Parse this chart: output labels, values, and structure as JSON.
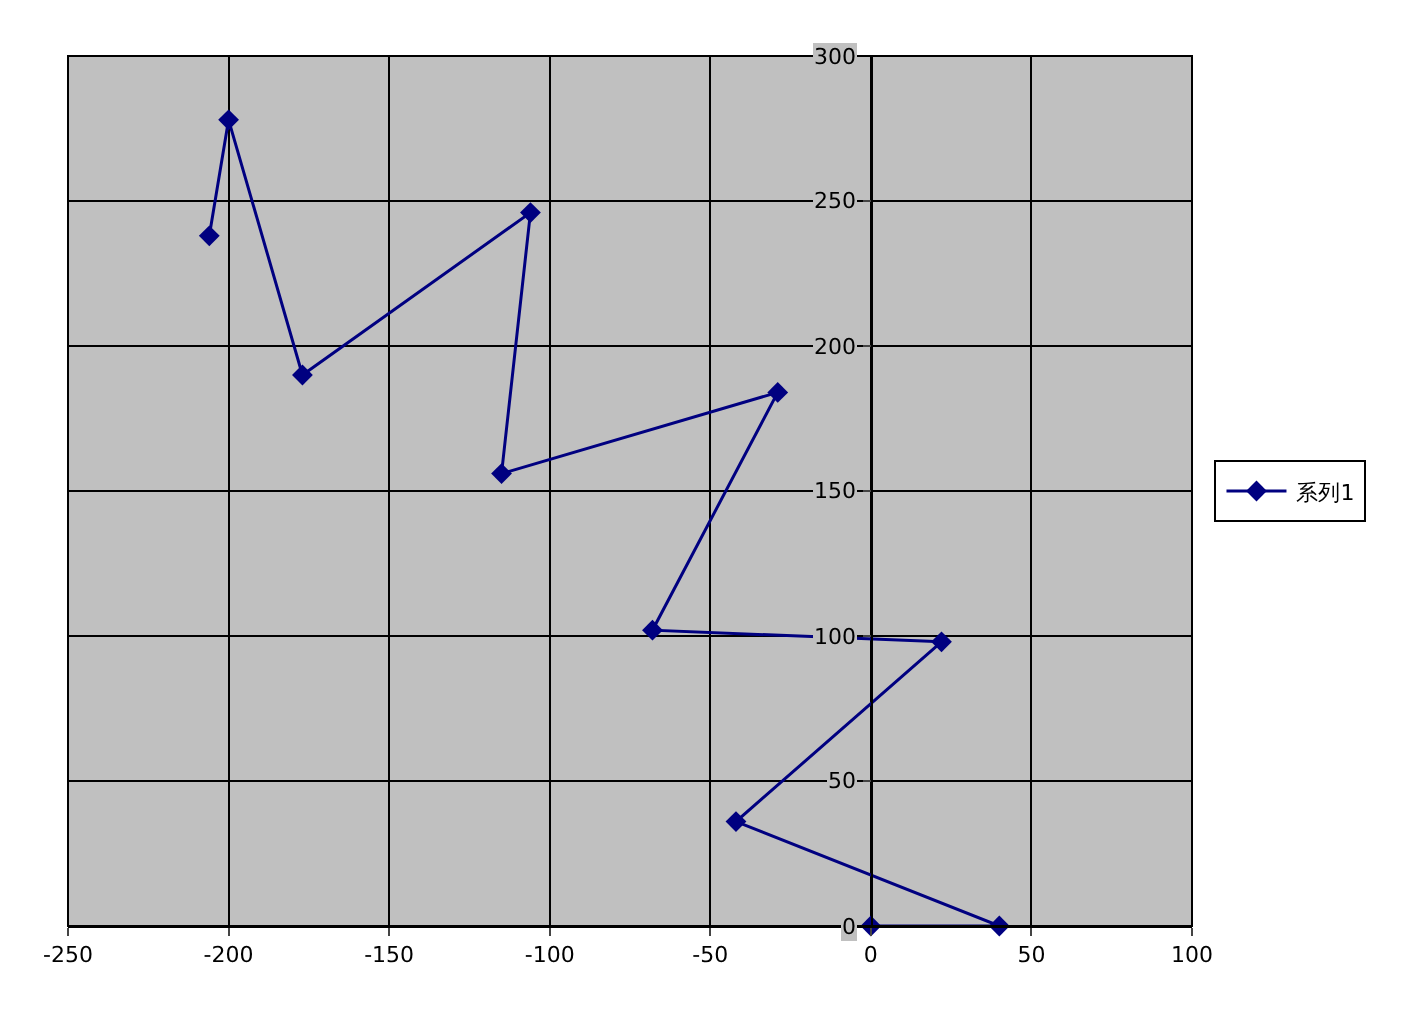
{
  "chart_data": {
    "type": "line",
    "series": [
      {
        "name": "系列1",
        "color": "#000080",
        "x": [
          0,
          40,
          -42,
          22,
          -68,
          -29,
          -115,
          -106,
          -177,
          -200,
          -206
        ],
        "values": [
          0,
          0,
          36,
          98,
          102,
          184,
          156,
          246,
          190,
          278,
          238
        ]
      }
    ],
    "xlim": [
      -250,
      100
    ],
    "xticks": [
      -250,
      -200,
      -150,
      -100,
      -50,
      0,
      50,
      100
    ],
    "ylim": [
      0,
      300
    ],
    "yticks": [
      0,
      50,
      100,
      150,
      200,
      250,
      300
    ],
    "grid": true,
    "legend": "right",
    "marker": "diamond",
    "line_style": "solid"
  }
}
